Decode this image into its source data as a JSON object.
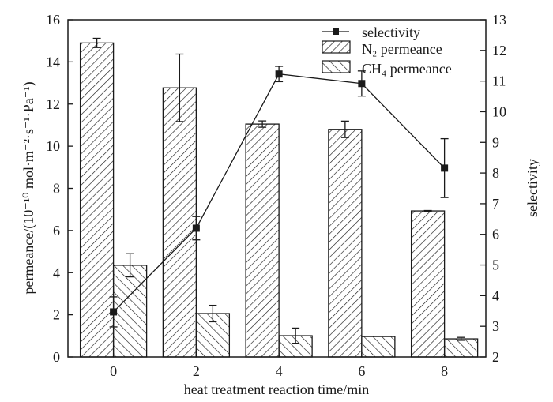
{
  "chart_data": {
    "type": "bar",
    "title": "",
    "xlabel": "heat treatment reaction time/min",
    "ylabel": "permeance/(10⁻¹⁰ mol·m⁻²·s⁻¹·Pa⁻¹)",
    "y2label": "selectivity",
    "categories": [
      "0",
      "2",
      "4",
      "6",
      "8"
    ],
    "x": [
      0,
      2,
      4,
      6,
      8
    ],
    "xlim": [
      -1.1,
      9.0
    ],
    "ylim": [
      0,
      16
    ],
    "y2lim": [
      2,
      13
    ],
    "yticks": [
      "0",
      "2",
      "4",
      "6",
      "8",
      "10",
      "12",
      "14",
      "16"
    ],
    "y2ticks": [
      "2",
      "3",
      "4",
      "5",
      "6",
      "7",
      "8",
      "9",
      "10",
      "11",
      "12",
      "13"
    ],
    "grid": false,
    "legend_position": "top-right",
    "series": [
      {
        "name": "selectivity",
        "kind": "line",
        "axis": "right",
        "values": [
          3.47,
          6.2,
          11.23,
          10.92,
          8.16
        ],
        "errors": [
          0.49,
          0.38,
          0.25,
          0.41,
          0.96
        ],
        "color": "#1a1a1a"
      },
      {
        "name": "N₂ permeance",
        "kind": "bar",
        "axis": "left",
        "hatch": "forward",
        "values": [
          14.9,
          12.77,
          11.05,
          10.8,
          6.93
        ],
        "errors": [
          0.22,
          1.6,
          0.15,
          0.39,
          0.02
        ]
      },
      {
        "name": "CH₄ permeance",
        "kind": "bar",
        "axis": "left",
        "hatch": "back",
        "values": [
          4.35,
          2.06,
          1.01,
          0.97,
          0.86
        ],
        "errors": [
          0.55,
          0.39,
          0.36,
          0.0,
          0.07
        ]
      }
    ]
  }
}
